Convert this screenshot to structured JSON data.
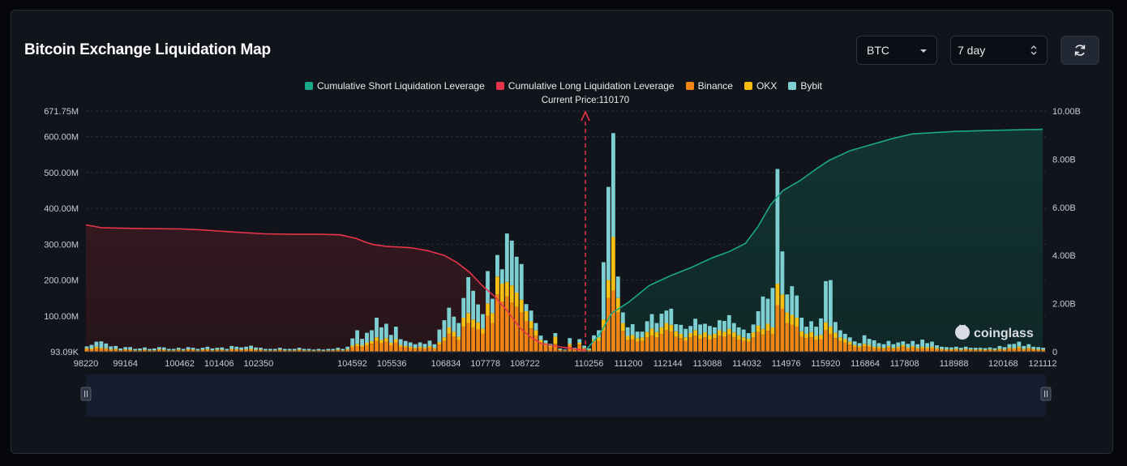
{
  "title": "Bitcoin Exchange Liquidation Map",
  "controls": {
    "symbol": "BTC",
    "range": "7 day"
  },
  "watermark": "coinglass",
  "chart_data": {
    "type": "bar",
    "title": "Bitcoin Exchange Liquidation Map",
    "current_price_label": "Current Price:110170",
    "current_price": 110170,
    "legend": [
      {
        "name": "Cumulative Short Liquidation Leverage",
        "color": "#1aa88a"
      },
      {
        "name": "Cumulative Long Liquidation Leverage",
        "color": "#e8344a"
      },
      {
        "name": "Binance",
        "color": "#f08513"
      },
      {
        "name": "OKX",
        "color": "#f6be12"
      },
      {
        "name": "Bybit",
        "color": "#7ecfd2"
      }
    ],
    "y_left": {
      "ticks": [
        "93.09K",
        "100.00M",
        "200.00M",
        "300.00M",
        "400.00M",
        "500.00M",
        "600.00M",
        "671.75M"
      ],
      "min": 0,
      "max": 671.75,
      "unit": "M"
    },
    "y_right": {
      "ticks": [
        "0",
        "2.00B",
        "4.00B",
        "6.00B",
        "8.00B",
        "10.00B"
      ],
      "min": 0,
      "max": 10,
      "unit": "B"
    },
    "x_ticks": [
      "98220",
      "99164",
      "100462",
      "101406",
      "102350",
      "104592",
      "105536",
      "106834",
      "107778",
      "108722",
      "110256",
      "111200",
      "112144",
      "113088",
      "114032",
      "114976",
      "115920",
      "116864",
      "117808",
      "118988",
      "120168",
      "121112"
    ],
    "x_range": [
      98220,
      121112
    ],
    "bar_width": 115.6,
    "bars": [
      [
        98220,
        7,
        3,
        5
      ],
      [
        98336,
        6,
        3,
        10
      ],
      [
        98451,
        10,
        4,
        14
      ],
      [
        98567,
        8,
        3,
        18
      ],
      [
        98682,
        7,
        3,
        13
      ],
      [
        98798,
        5,
        2,
        8
      ],
      [
        98914,
        6,
        2,
        8
      ],
      [
        99029,
        3,
        1,
        5
      ],
      [
        99145,
        5,
        2,
        6
      ],
      [
        99260,
        4,
        2,
        7
      ],
      [
        99376,
        3,
        1,
        4
      ],
      [
        99491,
        3,
        1,
        5
      ],
      [
        99607,
        4,
        2,
        6
      ],
      [
        99723,
        3,
        1,
        4
      ],
      [
        99838,
        3,
        1,
        5
      ],
      [
        99954,
        5,
        2,
        6
      ],
      [
        100069,
        4,
        2,
        6
      ],
      [
        100185,
        3,
        1,
        4
      ],
      [
        100300,
        3,
        1,
        4
      ],
      [
        100416,
        4,
        2,
        5
      ],
      [
        100532,
        3,
        1,
        4
      ],
      [
        100647,
        5,
        2,
        6
      ],
      [
        100763,
        4,
        2,
        5
      ],
      [
        100878,
        3,
        1,
        4
      ],
      [
        100994,
        4,
        2,
        5
      ],
      [
        101109,
        5,
        2,
        7
      ],
      [
        101225,
        3,
        1,
        5
      ],
      [
        101341,
        4,
        2,
        5
      ],
      [
        101456,
        4,
        2,
        6
      ],
      [
        101572,
        3,
        1,
        4
      ],
      [
        101687,
        6,
        2,
        8
      ],
      [
        101803,
        5,
        2,
        7
      ],
      [
        101918,
        4,
        2,
        6
      ],
      [
        102034,
        5,
        2,
        7
      ],
      [
        102150,
        6,
        2,
        9
      ],
      [
        102265,
        4,
        2,
        6
      ],
      [
        102381,
        4,
        2,
        5
      ],
      [
        102496,
        3,
        1,
        4
      ],
      [
        102612,
        3,
        1,
        4
      ],
      [
        102727,
        3,
        1,
        4
      ],
      [
        102843,
        4,
        2,
        5
      ],
      [
        102959,
        3,
        1,
        4
      ],
      [
        103074,
        3,
        1,
        4
      ],
      [
        103190,
        3,
        1,
        4
      ],
      [
        103305,
        4,
        2,
        5
      ],
      [
        103421,
        3,
        1,
        4
      ],
      [
        103536,
        3,
        1,
        4
      ],
      [
        103652,
        2,
        1,
        3
      ],
      [
        103768,
        3,
        1,
        4
      ],
      [
        103883,
        2,
        1,
        3
      ],
      [
        103999,
        3,
        1,
        4
      ],
      [
        104114,
        3,
        1,
        4
      ],
      [
        104230,
        4,
        2,
        5
      ],
      [
        104345,
        3,
        1,
        4
      ],
      [
        104461,
        5,
        2,
        7
      ],
      [
        104577,
        12,
        5,
        20
      ],
      [
        104692,
        16,
        6,
        38
      ],
      [
        104808,
        13,
        5,
        18
      ],
      [
        104923,
        18,
        7,
        28
      ],
      [
        105039,
        22,
        8,
        30
      ],
      [
        105155,
        30,
        10,
        55
      ],
      [
        105270,
        24,
        9,
        35
      ],
      [
        105386,
        28,
        10,
        40
      ],
      [
        105501,
        18,
        7,
        22
      ],
      [
        105617,
        26,
        9,
        35
      ],
      [
        105732,
        14,
        5,
        16
      ],
      [
        105848,
        12,
        4,
        14
      ],
      [
        105964,
        10,
        4,
        12
      ],
      [
        106079,
        8,
        3,
        10
      ],
      [
        106195,
        10,
        4,
        12
      ],
      [
        106310,
        9,
        3,
        10
      ],
      [
        106426,
        12,
        4,
        15
      ],
      [
        106541,
        8,
        3,
        10
      ],
      [
        106657,
        20,
        7,
        35
      ],
      [
        106773,
        30,
        10,
        48
      ],
      [
        106888,
        50,
        18,
        55
      ],
      [
        107004,
        42,
        14,
        42
      ],
      [
        107119,
        32,
        10,
        38
      ],
      [
        107235,
        70,
        25,
        55
      ],
      [
        107350,
        80,
        28,
        100
      ],
      [
        107466,
        68,
        22,
        80
      ],
      [
        107582,
        62,
        20,
        50
      ],
      [
        107697,
        50,
        15,
        40
      ],
      [
        107813,
        100,
        35,
        90
      ],
      [
        107928,
        80,
        28,
        40
      ],
      [
        108044,
        160,
        50,
        60
      ],
      [
        108159,
        140,
        50,
        40
      ],
      [
        108275,
        155,
        40,
        135
      ],
      [
        108391,
        138,
        47,
        125
      ],
      [
        108506,
        125,
        40,
        100
      ],
      [
        108622,
        110,
        35,
        100
      ],
      [
        108737,
        85,
        28,
        20
      ],
      [
        108853,
        65,
        20,
        30
      ],
      [
        108968,
        45,
        15,
        20
      ],
      [
        109084,
        25,
        8,
        12
      ],
      [
        109200,
        18,
        6,
        8
      ],
      [
        109315,
        12,
        4,
        6
      ],
      [
        109431,
        22,
        20,
        10
      ],
      [
        109546,
        4,
        2,
        3
      ],
      [
        109662,
        3,
        1,
        2
      ],
      [
        109777,
        18,
        4,
        16
      ],
      [
        109893,
        5,
        2,
        4
      ],
      [
        110009,
        20,
        5,
        10
      ],
      [
        110124,
        8,
        3,
        6
      ],
      [
        110240,
        4,
        2,
        3
      ],
      [
        110355,
        28,
        6,
        12
      ],
      [
        110471,
        30,
        10,
        20
      ],
      [
        110586,
        60,
        30,
        160
      ],
      [
        110702,
        150,
        50,
        260
      ],
      [
        110817,
        170,
        150,
        290
      ],
      [
        110933,
        110,
        40,
        60
      ],
      [
        111049,
        58,
        22,
        30
      ],
      [
        111164,
        32,
        12,
        24
      ],
      [
        111280,
        35,
        12,
        30
      ],
      [
        111395,
        28,
        10,
        18
      ],
      [
        111511,
        30,
        10,
        16
      ],
      [
        111626,
        40,
        15,
        30
      ],
      [
        111742,
        45,
        20,
        40
      ],
      [
        111858,
        40,
        15,
        25
      ],
      [
        111973,
        50,
        18,
        38
      ],
      [
        112089,
        60,
        20,
        35
      ],
      [
        112204,
        55,
        20,
        45
      ],
      [
        112320,
        42,
        15,
        20
      ],
      [
        112435,
        38,
        12,
        25
      ],
      [
        112551,
        30,
        10,
        24
      ],
      [
        112667,
        40,
        12,
        20
      ],
      [
        112782,
        45,
        15,
        32
      ],
      [
        112898,
        36,
        12,
        28
      ],
      [
        113013,
        40,
        14,
        24
      ],
      [
        113129,
        34,
        12,
        26
      ],
      [
        113244,
        38,
        12,
        18
      ],
      [
        113360,
        45,
        15,
        28
      ],
      [
        113476,
        42,
        14,
        30
      ],
      [
        113591,
        48,
        16,
        38
      ],
      [
        113707,
        40,
        14,
        26
      ],
      [
        113822,
        34,
        12,
        22
      ],
      [
        113938,
        30,
        10,
        22
      ],
      [
        114053,
        28,
        8,
        16
      ],
      [
        114169,
        40,
        14,
        22
      ],
      [
        114285,
        55,
        18,
        40
      ],
      [
        114400,
        48,
        16,
        90
      ],
      [
        114516,
        58,
        20,
        70
      ],
      [
        114631,
        50,
        18,
        110
      ],
      [
        114747,
        130,
        60,
        320
      ],
      [
        114862,
        120,
        40,
        120
      ],
      [
        114978,
        80,
        30,
        50
      ],
      [
        115094,
        75,
        28,
        80
      ],
      [
        115209,
        70,
        25,
        62
      ],
      [
        115325,
        42,
        15,
        38
      ],
      [
        115440,
        38,
        12,
        20
      ],
      [
        115556,
        40,
        15,
        30
      ],
      [
        115671,
        32,
        12,
        26
      ],
      [
        115787,
        35,
        12,
        46
      ],
      [
        115903,
        60,
        22,
        115
      ],
      [
        116018,
        50,
        20,
        130
      ],
      [
        116134,
        38,
        15,
        30
      ],
      [
        116249,
        30,
        10,
        20
      ],
      [
        116365,
        26,
        9,
        15
      ],
      [
        116480,
        20,
        8,
        12
      ],
      [
        116596,
        14,
        5,
        10
      ],
      [
        116712,
        12,
        4,
        8
      ],
      [
        116827,
        16,
        6,
        24
      ],
      [
        116943,
        14,
        5,
        17
      ],
      [
        117058,
        10,
        4,
        18
      ],
      [
        117174,
        10,
        4,
        10
      ],
      [
        117289,
        8,
        3,
        10
      ],
      [
        117405,
        12,
        4,
        14
      ],
      [
        117521,
        8,
        3,
        10
      ],
      [
        117636,
        10,
        4,
        12
      ],
      [
        117752,
        14,
        5,
        10
      ],
      [
        117867,
        9,
        3,
        10
      ],
      [
        117983,
        12,
        4,
        14
      ],
      [
        118098,
        8,
        3,
        10
      ],
      [
        118214,
        10,
        4,
        20
      ],
      [
        118330,
        9,
        3,
        12
      ],
      [
        118445,
        10,
        4,
        14
      ],
      [
        118561,
        7,
        3,
        8
      ],
      [
        118676,
        6,
        2,
        6
      ],
      [
        118792,
        5,
        2,
        6
      ],
      [
        118907,
        5,
        2,
        5
      ],
      [
        119023,
        6,
        2,
        6
      ],
      [
        119139,
        4,
        2,
        5
      ],
      [
        119254,
        6,
        2,
        6
      ],
      [
        119370,
        5,
        2,
        4
      ],
      [
        119485,
        4,
        2,
        5
      ],
      [
        119601,
        5,
        2,
        4
      ],
      [
        119716,
        4,
        2,
        4
      ],
      [
        119832,
        5,
        2,
        5
      ],
      [
        119948,
        4,
        2,
        4
      ],
      [
        120063,
        6,
        2,
        8
      ],
      [
        120179,
        5,
        2,
        6
      ],
      [
        120294,
        8,
        3,
        10
      ],
      [
        120410,
        7,
        3,
        12
      ],
      [
        120525,
        10,
        4,
        14
      ],
      [
        120641,
        6,
        2,
        8
      ],
      [
        120757,
        8,
        3,
        10
      ],
      [
        120872,
        6,
        2,
        6
      ],
      [
        120988,
        5,
        2,
        6
      ],
      [
        121103,
        4,
        2,
        5
      ]
    ],
    "long_cumulative_B": [
      [
        98220,
        5.27
      ],
      [
        98600,
        5.15
      ],
      [
        99500,
        5.12
      ],
      [
        100500,
        5.1
      ],
      [
        101000,
        5.06
      ],
      [
        101800,
        4.97
      ],
      [
        102500,
        4.9
      ],
      [
        103200,
        4.88
      ],
      [
        103800,
        4.88
      ],
      [
        104300,
        4.86
      ],
      [
        104700,
        4.7
      ],
      [
        104900,
        4.56
      ],
      [
        105100,
        4.45
      ],
      [
        105400,
        4.38
      ],
      [
        106000,
        4.32
      ],
      [
        106400,
        4.2
      ],
      [
        106800,
        4.0
      ],
      [
        107100,
        3.7
      ],
      [
        107400,
        3.3
      ],
      [
        107700,
        2.75
      ],
      [
        108000,
        2.3
      ],
      [
        108300,
        1.7
      ],
      [
        108600,
        1.0
      ],
      [
        108850,
        0.62
      ],
      [
        109100,
        0.35
      ],
      [
        109500,
        0.22
      ],
      [
        109900,
        0.12
      ],
      [
        110170,
        0.05
      ]
    ],
    "short_cumulative_B": [
      [
        110170,
        0.05
      ],
      [
        110500,
        0.7
      ],
      [
        110800,
        1.6
      ],
      [
        111200,
        2.05
      ],
      [
        111700,
        2.75
      ],
      [
        112200,
        3.15
      ],
      [
        112700,
        3.5
      ],
      [
        113200,
        3.9
      ],
      [
        113600,
        4.15
      ],
      [
        114000,
        4.5
      ],
      [
        114300,
        5.2
      ],
      [
        114600,
        6.1
      ],
      [
        114900,
        6.7
      ],
      [
        115300,
        7.1
      ],
      [
        115700,
        7.6
      ],
      [
        116000,
        7.95
      ],
      [
        116500,
        8.35
      ],
      [
        117000,
        8.6
      ],
      [
        117500,
        8.85
      ],
      [
        118000,
        9.05
      ],
      [
        118500,
        9.1
      ],
      [
        119000,
        9.15
      ],
      [
        119500,
        9.18
      ],
      [
        120000,
        9.2
      ],
      [
        120500,
        9.22
      ],
      [
        121112,
        9.24
      ]
    ]
  }
}
